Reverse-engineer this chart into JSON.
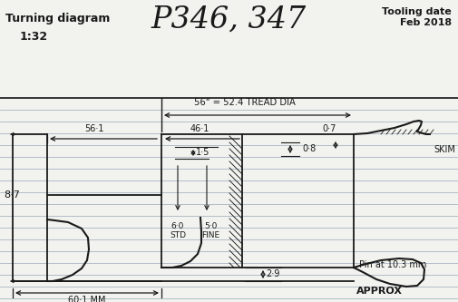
{
  "title_left": "Turning diagram",
  "scale": "1:32",
  "title_center": "P346, 347",
  "title_right": "Tooling date\nFeb 2018",
  "dim_top": "56\" = 52.4 TREAD DIA",
  "bg_color": "#f2f2ee",
  "line_color": "#1a1a1a",
  "ruled_line_color": "#9aaabb",
  "annotations": {
    "dim_56_1": "56·1",
    "dim_46_1": "46·1",
    "dim_0_8": "0·8",
    "dim_0_7": "0·7",
    "dim_1_5": "1·5",
    "dim_6_0_std": "6·0\nSTD",
    "dim_5_0_fine": "5·0\nFINE",
    "dim_2_9": "2·9",
    "dim_8_7": "8·7",
    "dim_60_1": "60·1 MM",
    "label_skim": "SKIM",
    "label_pin": "Pin at 10.3 mm",
    "label_approx": "APPROX"
  }
}
